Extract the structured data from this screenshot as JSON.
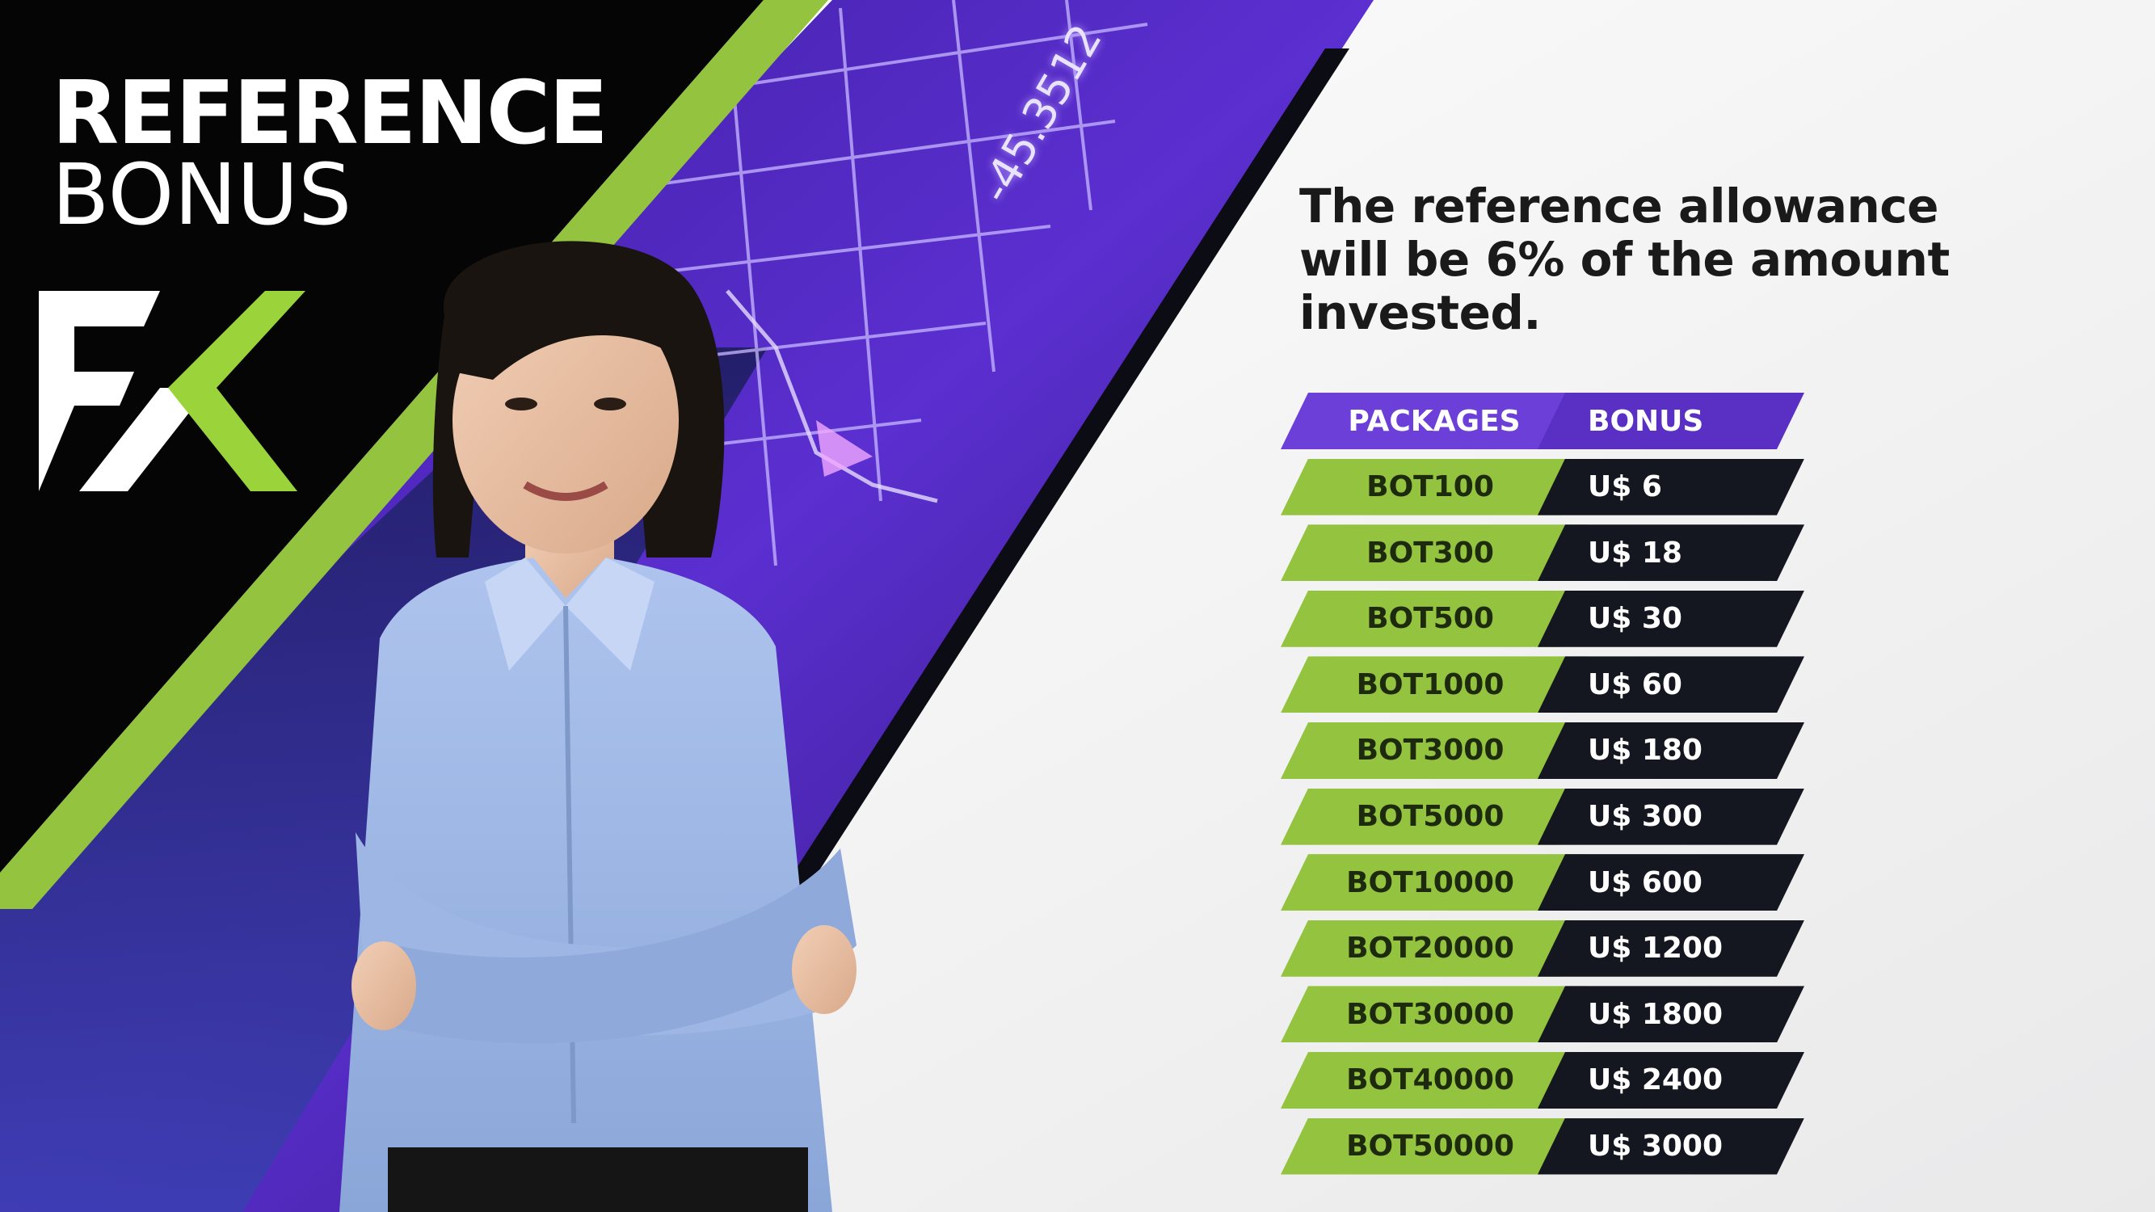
{
  "title": {
    "line1": "REFERENCE",
    "line2": "BONUS"
  },
  "logo": {
    "name": "fx-logo",
    "colors": {
      "white": "#ffffff",
      "green": "#9bd33a"
    }
  },
  "ticker": "-45.3512",
  "headline": "The reference allowance will be 6% of the amount invested.",
  "table": {
    "headers": {
      "packages": "PACKAGES",
      "bonus": "BONUS"
    },
    "rows": [
      {
        "package": "BOT100",
        "bonus": "U$ 6"
      },
      {
        "package": "BOT300",
        "bonus": "U$ 18"
      },
      {
        "package": "BOT500",
        "bonus": "U$ 30"
      },
      {
        "package": "BOT1000",
        "bonus": "U$ 60"
      },
      {
        "package": "BOT3000",
        "bonus": "U$ 180"
      },
      {
        "package": "BOT5000",
        "bonus": "U$ 300"
      },
      {
        "package": "BOT10000",
        "bonus": "U$ 600"
      },
      {
        "package": "BOT20000",
        "bonus": "U$ 1200"
      },
      {
        "package": "BOT30000",
        "bonus": "U$ 1800"
      },
      {
        "package": "BOT40000",
        "bonus": "U$ 2400"
      },
      {
        "package": "BOT50000",
        "bonus": "U$ 3000"
      }
    ]
  },
  "colors": {
    "accent_green": "#93c33f",
    "accent_purple": "#6b3fd8",
    "dark": "#151720",
    "background": "#f3f3f3"
  }
}
